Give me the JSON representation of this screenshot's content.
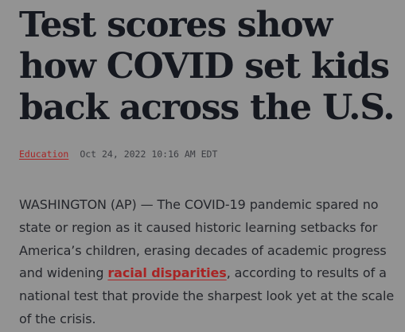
{
  "article": {
    "headline": "Test scores show how COVID set kids back across the U.S.",
    "category": "Education",
    "timestamp": "Oct 24, 2022 10:16 AM EDT",
    "body": {
      "before_link": "WASHINGTON (AP) — The COVID-19 pandemic spared no state or region as it caused historic learning setbacks for America’s children, erasing decades of academic progress and widening ",
      "link_text": "racial disparities",
      "after_link": ", according to results of a national test that provide the sharpest look yet at the scale of the crisis."
    }
  },
  "colors": {
    "background": "#939393",
    "headline": "#15181f",
    "accent_link": "#a82424",
    "body_text": "#24262b"
  }
}
